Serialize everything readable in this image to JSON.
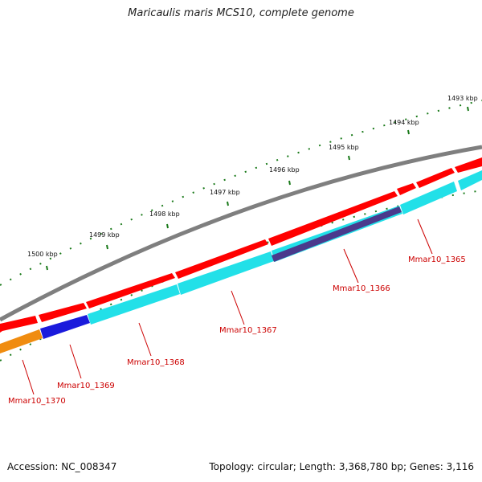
{
  "title": "Maricaulis maris MCS10, complete genome",
  "footer": {
    "accession": "Accession: NC_008347",
    "topology": "Topology: circular; Length: 3,368,780 bp; Genes: 3,116"
  },
  "scale_labels": [
    "1493 kbp",
    "1494 kbp",
    "1495 kbp",
    "1496 kbp",
    "1497 kbp",
    "1498 kbp",
    "1499 kbp",
    "1500 kbp"
  ],
  "gene_labels": [
    "Mmar10_1365",
    "Mmar10_1366",
    "Mmar10_1367",
    "Mmar10_1368",
    "Mmar10_1369",
    "Mmar10_1370"
  ],
  "colors": {
    "backbone": "#7f7f7f",
    "forward_gene": "#ff0000",
    "feature_cyan": "#22e0e8",
    "feature_blue": "#1a1adc",
    "feature_navy": "#4a3a8c",
    "feature_orange": "#f08c10",
    "tick": "#1a7a1a",
    "label": "#cc0000"
  }
}
